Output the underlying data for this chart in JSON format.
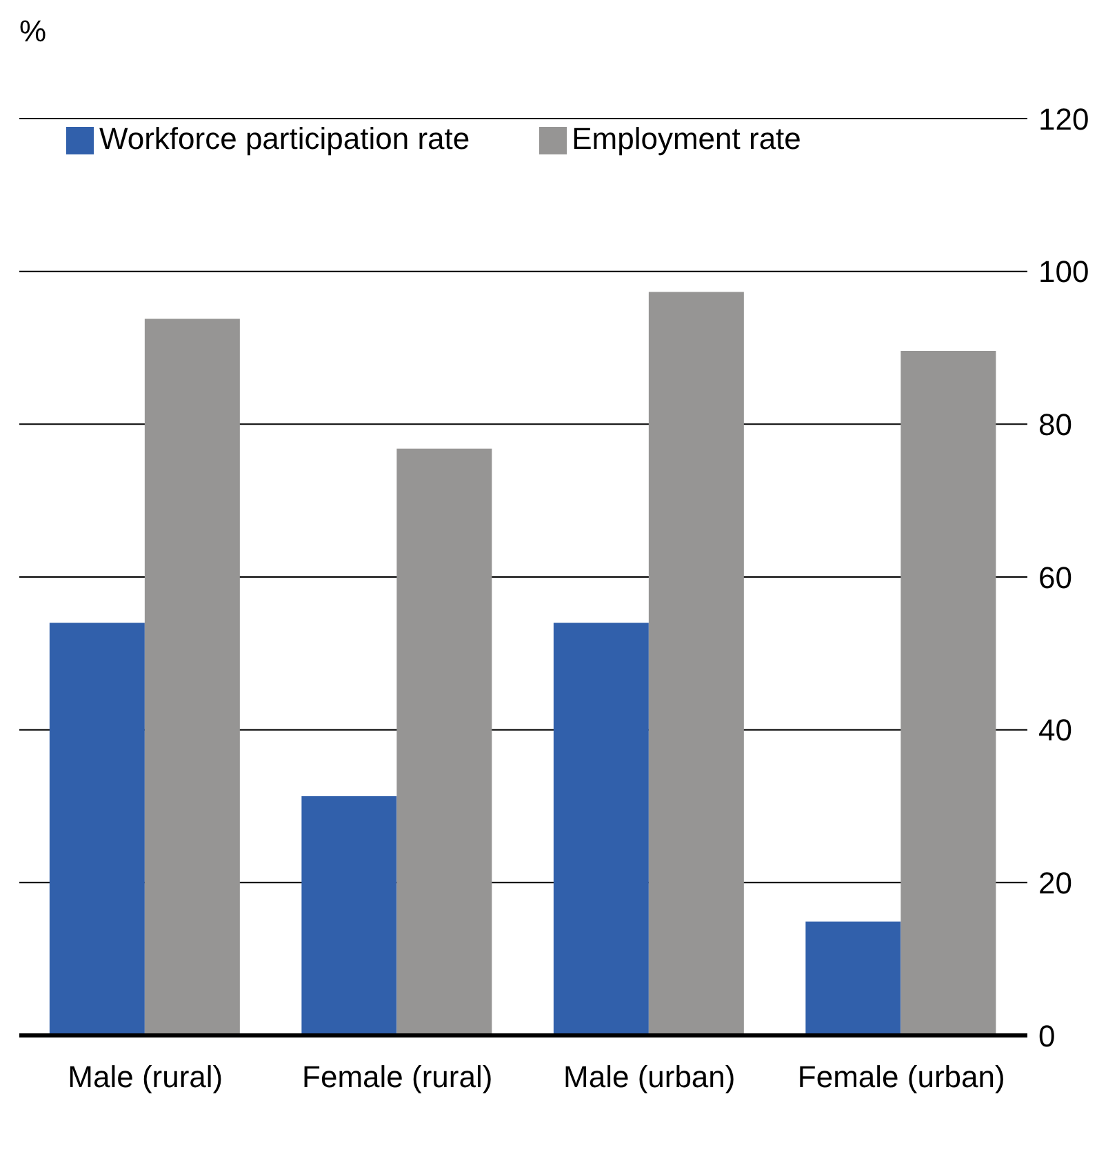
{
  "chart_data": {
    "type": "bar",
    "ylabel": "%",
    "categories": [
      "Male (rural)",
      "Female (rural)",
      "Male (urban)",
      "Female (urban)"
    ],
    "series": [
      {
        "name": "Workforce participation rate",
        "color": "#3160ab",
        "values": [
          54,
          31.3,
          54,
          14.9
        ]
      },
      {
        "name": "Employment rate",
        "color": "#969594",
        "values": [
          93.8,
          76.8,
          97.3,
          89.6
        ]
      }
    ],
    "ylim": [
      0,
      120
    ],
    "yticks": [
      0,
      20,
      40,
      60,
      80,
      100,
      120
    ],
    "grid": "y",
    "legend": "top left"
  }
}
